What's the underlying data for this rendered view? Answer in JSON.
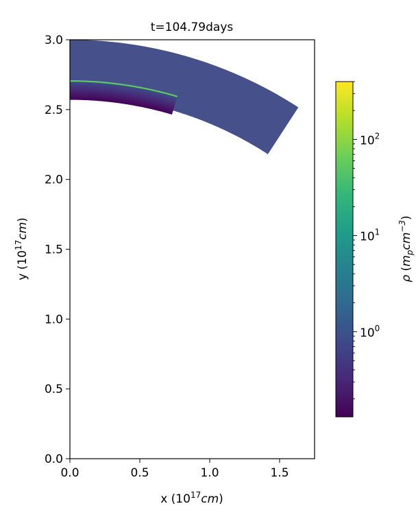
{
  "chart_data": {
    "type": "heatmap",
    "title": "t=104.79days",
    "xlabel": {
      "base": "x (10",
      "sup": "17",
      "unit": "cm",
      "close": ")"
    },
    "ylabel": {
      "base": "y (10",
      "sup": "17",
      "unit": "cm",
      "close": ")"
    },
    "xlim": [
      0.0,
      1.75
    ],
    "ylim": [
      0.0,
      3.0
    ],
    "xticks": [
      0.0,
      0.5,
      1.0,
      1.5
    ],
    "xtick_labels": [
      "0.0",
      "0.5",
      "1.0",
      "1.5"
    ],
    "yticks": [
      0.0,
      0.5,
      1.0,
      1.5,
      2.0,
      2.5,
      3.0
    ],
    "ytick_labels": [
      "0.0",
      "0.5",
      "1.0",
      "1.5",
      "2.0",
      "2.5",
      "3.0"
    ],
    "regions": [
      {
        "name": "ambient shell",
        "r_inner": 2.6,
        "r_outer": 3.0,
        "angle_max_deg": 33,
        "density": 0.8,
        "color": "#46508a"
      },
      {
        "name": "ejecta",
        "r_inner": 2.57,
        "r_outer": 2.71,
        "angle_max_deg": 16.5,
        "density_inner": 0.12,
        "density_outer": 2.5,
        "color_inner": "#440154",
        "color_outer": "#3b518b"
      },
      {
        "name": "shock front",
        "r": 2.705,
        "angle_max_deg": 16.5,
        "density": 70,
        "color": "#5ec962"
      }
    ],
    "colorbar": {
      "label": {
        "symbol": "ρ",
        "open": "(",
        "m": "m",
        "sub": "p",
        "cm": "cm",
        "sup": "−3",
        "close": ")"
      },
      "scale": "log",
      "vmin": 0.13,
      "vmax": 400,
      "colormap": "viridis",
      "colormap_stops": [
        "#440154",
        "#482878",
        "#3e4989",
        "#31688e",
        "#26828e",
        "#1f9e89",
        "#35b779",
        "#6ece58",
        "#b5de2b",
        "#fde725"
      ],
      "major_ticks": [
        1,
        10,
        100
      ],
      "major_tick_labels": [
        {
          "base": "10",
          "exp": "0"
        },
        {
          "base": "10",
          "exp": "1"
        },
        {
          "base": "10",
          "exp": "2"
        }
      ]
    }
  }
}
